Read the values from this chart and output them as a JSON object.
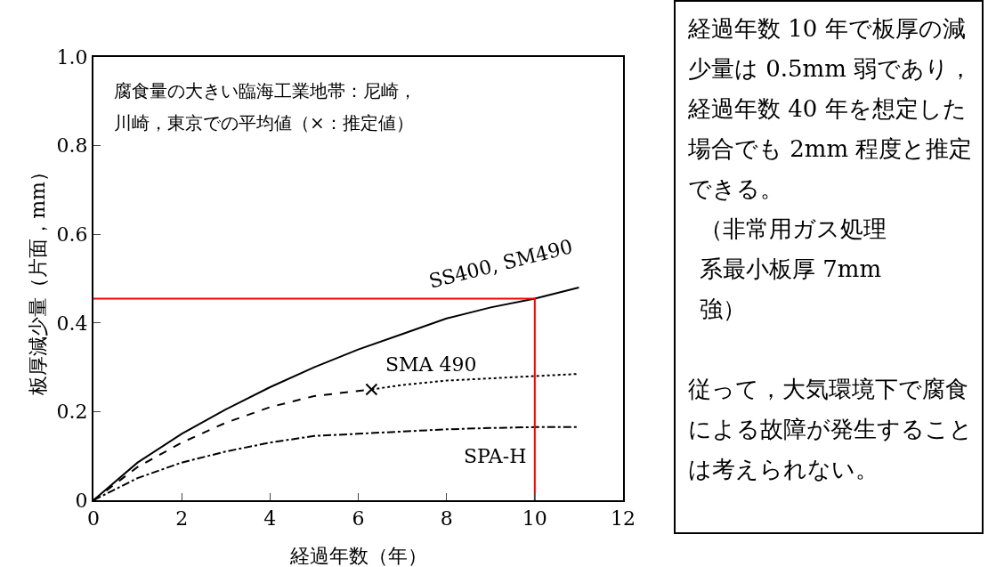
{
  "chart_data": {
    "type": "line",
    "xlabel": "経過年数（年）",
    "ylabel": "板厚減少量（片面，mm）",
    "xlim": [
      0,
      12
    ],
    "xticks": [
      0,
      2,
      4,
      6,
      8,
      10,
      12
    ],
    "ylim": [
      0,
      1.0
    ],
    "yticks": [
      0,
      {
        "value": 0.2,
        "label": "0.2"
      },
      {
        "value": 0.4,
        "label": "0.4"
      },
      {
        "value": 0.6,
        "label": "0.6"
      },
      {
        "value": 0.8,
        "label": "0.8"
      },
      {
        "value": 1,
        "label": "1.0"
      }
    ],
    "grid": false,
    "legend": false,
    "series": [
      {
        "name": "SS400, SM490",
        "color": "#000000",
        "line_style": "solid",
        "x": [
          0,
          1,
          2,
          3,
          4,
          5,
          6,
          7,
          8,
          9,
          10,
          11
        ],
        "values": [
          0,
          0.085,
          0.15,
          0.205,
          0.255,
          0.3,
          0.34,
          0.375,
          0.41,
          0.435,
          0.455,
          0.48
        ]
      },
      {
        "name": "SMA 490",
        "color": "#000000",
        "line_style": "dashed",
        "x": [
          0,
          1,
          2,
          3,
          4,
          5,
          6.3
        ],
        "values": [
          0,
          0.075,
          0.13,
          0.175,
          0.21,
          0.235,
          0.25
        ]
      },
      {
        "color": "#000000",
        "line_style": "dotted",
        "x": [
          6.3,
          7,
          8,
          9,
          10,
          11
        ],
        "values": [
          0.25,
          0.26,
          0.27,
          0.275,
          0.28,
          0.285
        ]
      },
      {
        "type": "scatter",
        "marker": "cross",
        "color": "#000000",
        "x": [
          6.3
        ],
        "values": [
          0.25
        ]
      },
      {
        "name": "SPA-H",
        "color": "#000000",
        "line_style": "dashdot",
        "x": [
          0,
          1,
          2,
          3,
          4,
          5,
          6,
          7,
          8,
          9,
          10,
          11
        ],
        "values": [
          0,
          0.05,
          0.085,
          0.11,
          0.13,
          0.145,
          0.15,
          0.155,
          0.16,
          0.163,
          0.165,
          0.165
        ]
      },
      {
        "color": "#ff0000",
        "line_style": "solid",
        "x": [
          0,
          10,
          10
        ],
        "values": [
          0.455,
          0.455,
          0
        ]
      }
    ],
    "annotations": [
      "腐食量の大きい臨海工業地帯：尼崎，川崎，東京での平均値（×：推定値）",
      "経過年数 10 年で板厚の減少量は 0.5mm 弱であり，経過年数 40 年を想定した場合でも 2mm 程度と推定できる。",
      "（非常用ガス処理系最小板厚 7mm 強）",
      "従って，大気環境下で腐食による故障が発生することは考えられない。"
    ]
  }
}
